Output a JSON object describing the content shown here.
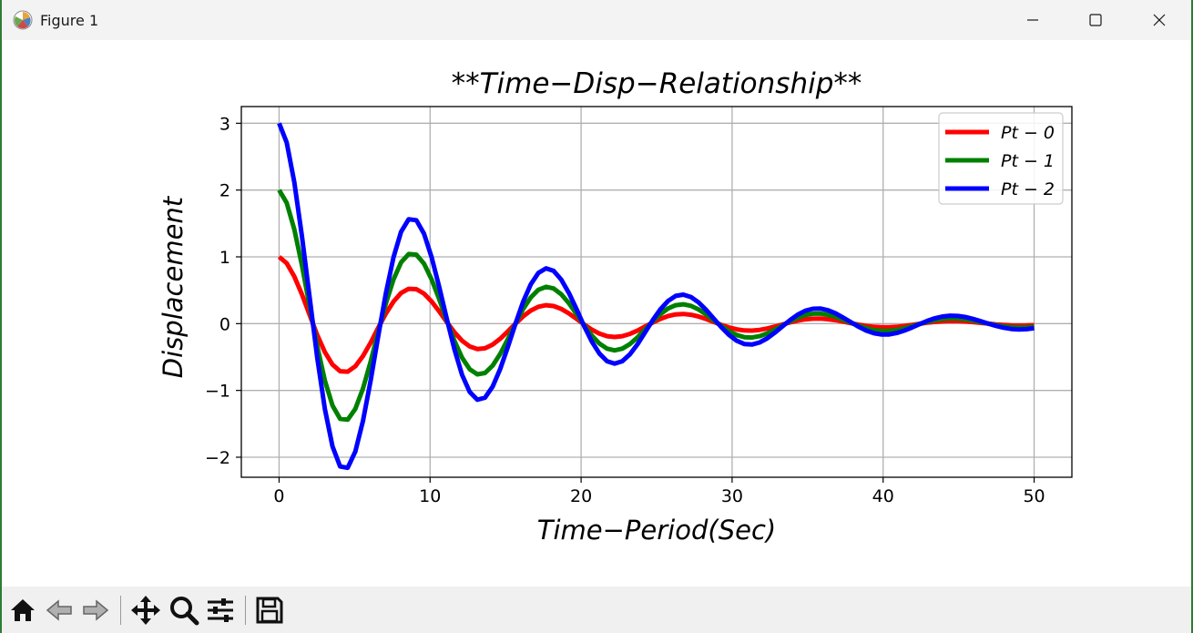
{
  "window": {
    "title": "Figure 1",
    "controls": [
      "minimize",
      "maximize",
      "close"
    ]
  },
  "toolbar": {
    "buttons": [
      "home-icon",
      "back-icon",
      "forward-icon",
      "pan-icon",
      "zoom-icon",
      "configure-subplots-icon",
      "save-icon"
    ]
  },
  "chart_data": {
    "type": "line",
    "title": "**Time−Disp−Relationship**",
    "xlabel": "Time−Period(Sec)",
    "ylabel": "Displacement",
    "xlim": [
      -2.5,
      52.5
    ],
    "ylim": [
      -2.3,
      3.25
    ],
    "xticks": [
      0,
      10,
      20,
      30,
      40,
      50
    ],
    "xtick_labels": [
      "0",
      "10",
      "20",
      "30",
      "40",
      "50"
    ],
    "yticks": [
      -2,
      -1,
      0,
      1,
      2,
      3
    ],
    "ytick_labels": [
      "−2",
      "−1",
      "0",
      "1",
      "2",
      "3"
    ],
    "grid": true,
    "legend_position": "top-right",
    "series": [
      {
        "name": "Pt − 0",
        "color": "#ff0000",
        "amplitude": 1,
        "damping": 0.0722,
        "omega": 0.7024,
        "t_start": 0,
        "t_end": 50,
        "points": 100
      },
      {
        "name": "Pt − 1",
        "color": "#008000",
        "amplitude": 2,
        "damping": 0.0722,
        "omega": 0.7024,
        "t_start": 0,
        "t_end": 50,
        "points": 100
      },
      {
        "name": "Pt − 2",
        "color": "#0000ff",
        "amplitude": 3,
        "damping": 0.0722,
        "omega": 0.7024,
        "t_start": 0,
        "t_end": 50,
        "points": 100
      }
    ]
  }
}
